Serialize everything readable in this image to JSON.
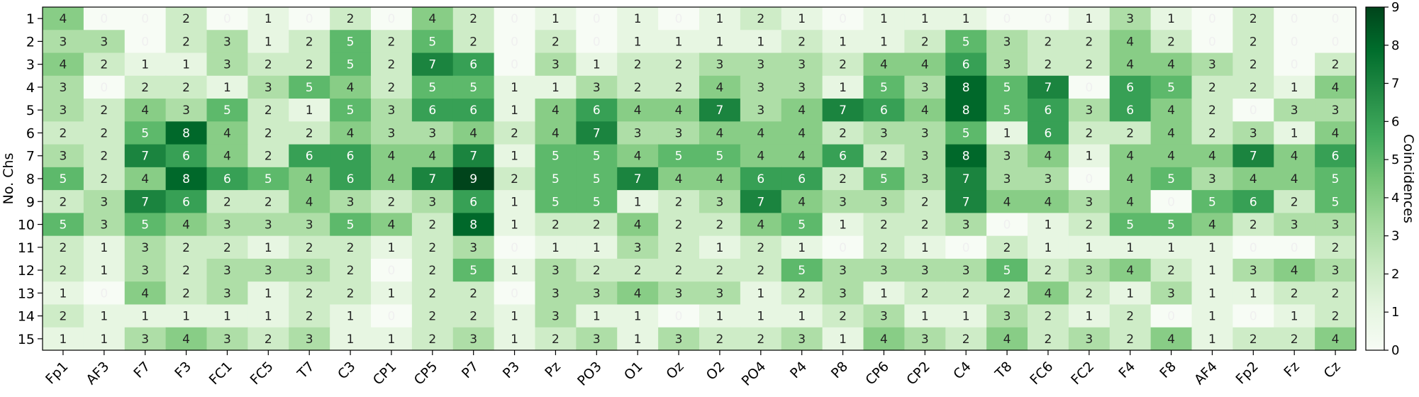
{
  "chart_data": {
    "type": "heatmap",
    "title": "",
    "xlabel": "",
    "ylabel": "No. Chs",
    "colorbar_label": "Coincidences",
    "colormap": "Greens",
    "vmin": 0,
    "vmax": 9,
    "colorbar_ticks": [
      0,
      1,
      2,
      3,
      4,
      5,
      6,
      7,
      8,
      9
    ],
    "x_categories": [
      "Fp1",
      "AF3",
      "F7",
      "F3",
      "FC1",
      "FC5",
      "T7",
      "C3",
      "CP1",
      "CP5",
      "P7",
      "P3",
      "Pz",
      "PO3",
      "O1",
      "Oz",
      "O2",
      "PO4",
      "P4",
      "P8",
      "CP6",
      "CP2",
      "C4",
      "T8",
      "FC6",
      "FC2",
      "F4",
      "F8",
      "AF4",
      "Fp2",
      "Fz",
      "Cz"
    ],
    "y_categories": [
      "1",
      "2",
      "3",
      "4",
      "5",
      "6",
      "7",
      "8",
      "9",
      "10",
      "11",
      "12",
      "13",
      "14",
      "15"
    ],
    "values": [
      [
        4,
        0,
        0,
        2,
        0,
        1,
        0,
        2,
        0,
        4,
        2,
        0,
        1,
        0,
        1,
        0,
        1,
        2,
        1,
        0,
        1,
        1,
        1,
        0,
        0,
        1,
        3,
        1,
        0,
        2,
        0,
        0
      ],
      [
        3,
        3,
        0,
        2,
        3,
        1,
        2,
        5,
        2,
        5,
        2,
        0,
        2,
        0,
        1,
        1,
        1,
        1,
        2,
        1,
        1,
        2,
        5,
        3,
        2,
        2,
        4,
        2,
        0,
        2,
        0,
        0
      ],
      [
        4,
        2,
        1,
        1,
        3,
        2,
        2,
        5,
        2,
        7,
        6,
        0,
        3,
        1,
        2,
        2,
        3,
        3,
        3,
        2,
        4,
        4,
        6,
        3,
        2,
        2,
        4,
        4,
        3,
        2,
        0,
        2
      ],
      [
        3,
        0,
        2,
        2,
        1,
        3,
        5,
        4,
        2,
        5,
        5,
        1,
        1,
        3,
        2,
        2,
        4,
        3,
        3,
        1,
        5,
        3,
        8,
        5,
        7,
        0,
        6,
        5,
        2,
        2,
        1,
        4
      ],
      [
        3,
        2,
        4,
        3,
        5,
        2,
        1,
        5,
        3,
        6,
        6,
        1,
        4,
        6,
        4,
        4,
        7,
        3,
        4,
        7,
        6,
        4,
        8,
        5,
        6,
        3,
        6,
        4,
        2,
        0,
        3,
        3
      ],
      [
        2,
        2,
        5,
        8,
        4,
        2,
        2,
        4,
        3,
        3,
        4,
        2,
        4,
        7,
        3,
        3,
        4,
        4,
        4,
        2,
        3,
        3,
        5,
        1,
        6,
        2,
        2,
        4,
        2,
        3,
        1,
        4
      ],
      [
        3,
        2,
        7,
        6,
        4,
        2,
        6,
        6,
        4,
        4,
        7,
        1,
        5,
        5,
        4,
        5,
        5,
        4,
        4,
        6,
        2,
        3,
        8,
        3,
        4,
        1,
        4,
        4,
        4,
        7,
        4,
        6
      ],
      [
        5,
        2,
        4,
        8,
        6,
        5,
        4,
        6,
        4,
        7,
        9,
        2,
        5,
        5,
        7,
        4,
        4,
        6,
        6,
        2,
        5,
        3,
        7,
        3,
        3,
        0,
        4,
        5,
        3,
        4,
        4,
        5
      ],
      [
        2,
        3,
        7,
        6,
        2,
        2,
        4,
        3,
        2,
        3,
        6,
        1,
        5,
        5,
        1,
        2,
        3,
        7,
        4,
        3,
        3,
        2,
        7,
        4,
        4,
        3,
        4,
        0,
        5,
        6,
        2,
        5
      ],
      [
        5,
        3,
        5,
        4,
        3,
        3,
        3,
        5,
        4,
        2,
        8,
        1,
        2,
        2,
        4,
        2,
        2,
        4,
        5,
        1,
        2,
        2,
        3,
        0,
        1,
        2,
        5,
        5,
        4,
        2,
        3,
        3
      ],
      [
        2,
        1,
        3,
        2,
        2,
        1,
        2,
        2,
        1,
        2,
        3,
        0,
        1,
        1,
        3,
        2,
        1,
        2,
        1,
        0,
        2,
        1,
        0,
        2,
        1,
        1,
        1,
        1,
        1,
        0,
        0,
        2
      ],
      [
        2,
        1,
        3,
        2,
        3,
        3,
        3,
        2,
        0,
        2,
        5,
        1,
        3,
        2,
        2,
        2,
        2,
        2,
        5,
        3,
        3,
        3,
        3,
        5,
        2,
        3,
        4,
        2,
        1,
        3,
        4,
        3
      ],
      [
        1,
        0,
        4,
        2,
        3,
        1,
        2,
        2,
        1,
        2,
        2,
        0,
        3,
        3,
        4,
        3,
        3,
        1,
        2,
        3,
        1,
        2,
        2,
        2,
        4,
        2,
        1,
        3,
        1,
        1,
        2,
        2
      ],
      [
        2,
        1,
        1,
        1,
        1,
        1,
        2,
        1,
        0,
        2,
        2,
        1,
        3,
        1,
        1,
        0,
        1,
        1,
        1,
        2,
        3,
        1,
        1,
        3,
        2,
        1,
        2,
        0,
        1,
        0,
        1,
        2
      ],
      [
        1,
        1,
        3,
        4,
        3,
        2,
        3,
        1,
        1,
        2,
        3,
        1,
        2,
        3,
        1,
        3,
        2,
        2,
        3,
        1,
        4,
        3,
        2,
        4,
        2,
        3,
        2,
        4,
        1,
        2,
        2,
        4
      ]
    ]
  }
}
